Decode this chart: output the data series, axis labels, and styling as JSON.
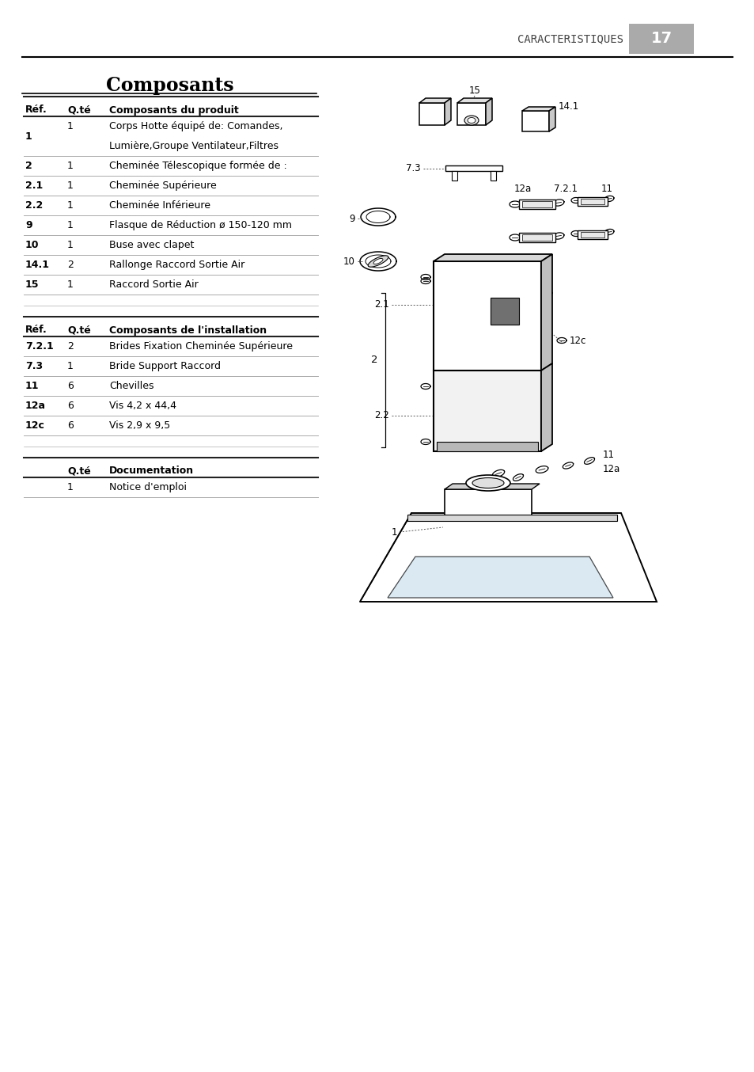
{
  "page_title": "CARACTERISTIQUES",
  "page_number": "17",
  "section_title": "Composants",
  "bg_color": "#ffffff",
  "table1_header": [
    "Réf.",
    "Q.té",
    "Composants du produit"
  ],
  "table1_rows": [
    [
      "1",
      "1",
      "Corps Hotte équipé de: Comandes,\nLumière,Groupe Ventilateur,Filtres"
    ],
    [
      "2",
      "1",
      "Cheminée Télescopique formée de :"
    ],
    [
      "2.1",
      "1",
      "Cheminée Supérieure"
    ],
    [
      "2.2",
      "1",
      "Cheminée Inférieure"
    ],
    [
      "9",
      "1",
      "Flasque de Réduction ø 150-120 mm"
    ],
    [
      "10",
      "1",
      "Buse avec clapet"
    ],
    [
      "14.1",
      "2",
      "Rallonge Raccord Sortie Air"
    ],
    [
      "15",
      "1",
      "Raccord Sortie Air"
    ]
  ],
  "table2_header": [
    "Réf.",
    "Q.té",
    "Composants de l'installation"
  ],
  "table2_rows": [
    [
      "7.2.1",
      "2",
      "Brides Fixation Cheminée Supérieure"
    ],
    [
      "7.3",
      "1",
      "Bride Support Raccord"
    ],
    [
      "11",
      "6",
      "Chevilles"
    ],
    [
      "12a",
      "6",
      "Vis 4,2 x 44,4"
    ],
    [
      "12c",
      "6",
      "Vis 2,9 x 9,5"
    ]
  ],
  "table3_header": [
    "",
    "Q.té",
    "Documentation"
  ],
  "table3_rows": [
    [
      "",
      "1",
      "Notice d'emploi"
    ]
  ],
  "font_color": "#000000",
  "separator_color": "#999999",
  "page_num_bg": "#aaaaaa"
}
